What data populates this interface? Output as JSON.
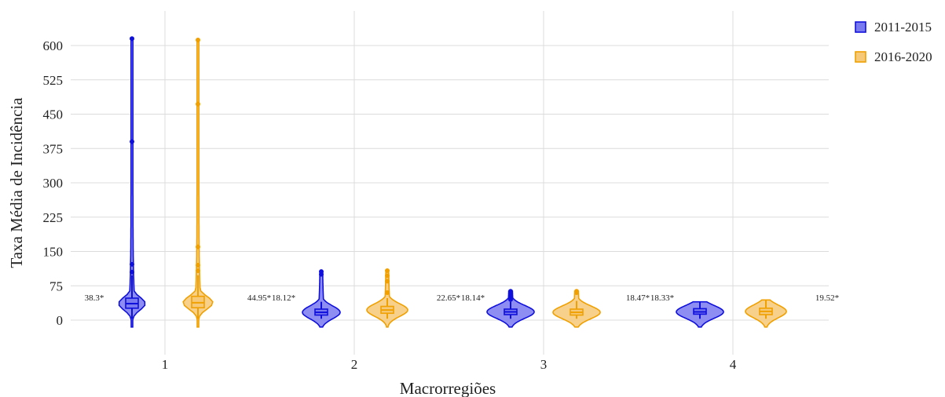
{
  "chart_data": {
    "type": "violin",
    "xlabel": "Macrorregiões",
    "ylabel": "Taxa Média de Incidência",
    "categories": [
      "1",
      "2",
      "3",
      "4"
    ],
    "y_ticks": [
      0,
      75,
      150,
      225,
      300,
      375,
      450,
      525,
      600
    ],
    "ylim": [
      -60,
      670
    ],
    "grid": true,
    "legend_position": "top-right",
    "series": [
      {
        "name": "2011-2015",
        "color": "#1010dd",
        "fill": "#7a7af0",
        "groups": [
          {
            "category": "1",
            "median": 36,
            "q1": 26,
            "q3": 48,
            "whisker_low": 3,
            "whisker_high": 98,
            "outliers": [
              105,
              122,
              390,
              615
            ],
            "annotation": "38.3*",
            "spread": 17
          },
          {
            "category": "2",
            "median": 17,
            "q1": 11,
            "q3": 24,
            "whisker_low": 3,
            "whisker_high": 40,
            "outliers": [
              100,
              106
            ],
            "annotation": "18.12*",
            "spread": 24
          },
          {
            "category": "3",
            "median": 18,
            "q1": 12,
            "q3": 24,
            "whisker_low": 3,
            "whisker_high": 40,
            "outliers": [
              45,
              52,
              58,
              63
            ],
            "annotation": "18.14*",
            "spread": 30
          },
          {
            "category": "4",
            "median": 18,
            "q1": 13,
            "q3": 25,
            "whisker_low": 3,
            "whisker_high": 40,
            "outliers": [],
            "annotation": "18.33*",
            "spread": 30
          }
        ]
      },
      {
        "name": "2016-2020",
        "color": "#f0a000",
        "fill": "#f6c978",
        "groups": [
          {
            "category": "1",
            "median": 38,
            "q1": 27,
            "q3": 52,
            "whisker_low": 3,
            "whisker_high": 98,
            "outliers": [
              108,
              120,
              160,
              472,
              612
            ],
            "annotation": "44.95*",
            "spread": 19
          },
          {
            "category": "2",
            "median": 22,
            "q1": 15,
            "q3": 30,
            "whisker_low": 3,
            "whisker_high": 48,
            "outliers": [
              60,
              85,
              97,
              108
            ],
            "annotation": "22.65*",
            "spread": 26
          },
          {
            "category": "3",
            "median": 17,
            "q1": 11,
            "q3": 24,
            "whisker_low": 3,
            "whisker_high": 42,
            "outliers": [
              60,
              63
            ],
            "annotation": "18.47*",
            "spread": 30
          },
          {
            "category": "4",
            "median": 19,
            "q1": 12,
            "q3": 26,
            "whisker_low": 3,
            "whisker_high": 44,
            "outliers": [],
            "annotation": "19.52*",
            "spread": 26
          }
        ]
      }
    ]
  }
}
